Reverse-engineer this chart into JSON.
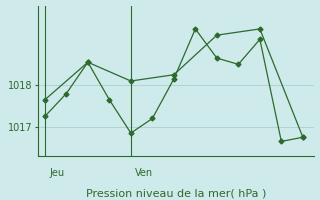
{
  "title": "Pression niveau de la mer( hPa )",
  "line1_x": [
    0,
    1,
    2,
    3,
    4,
    5,
    6,
    7,
    8,
    9,
    10,
    11,
    12
  ],
  "line1_y": [
    1017.25,
    1017.8,
    1018.55,
    1017.65,
    1016.85,
    1017.2,
    1018.15,
    1019.35,
    1018.65,
    1018.5,
    1019.1,
    1016.65,
    1016.75
  ],
  "line2_x": [
    0,
    2,
    4,
    6,
    8,
    10,
    12
  ],
  "line2_y": [
    1017.65,
    1018.55,
    1018.1,
    1018.25,
    1019.2,
    1019.35,
    1016.75
  ],
  "yticks": [
    1017,
    1018
  ],
  "ylim": [
    1016.3,
    1019.9
  ],
  "xlim": [
    -0.3,
    12.5
  ],
  "jeu_x": 0,
  "ven_x": 4,
  "day_labels": [
    "Jeu",
    "Ven"
  ],
  "line_color": "#2d6a2d",
  "bg_color": "#ceeaea",
  "grid_color": "#aed4d4",
  "font_size_title": 8,
  "font_size_tick": 7,
  "font_size_day": 7
}
